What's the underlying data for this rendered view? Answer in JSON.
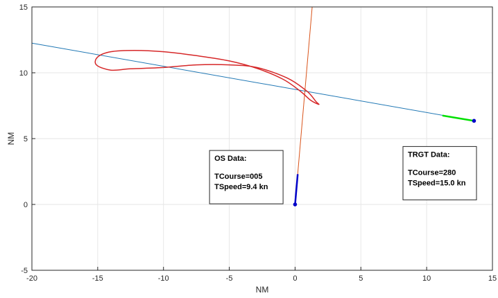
{
  "chart_data": {
    "type": "line",
    "title": "",
    "xlabel": "NM",
    "ylabel": "NM",
    "xlim": [
      -20,
      15
    ],
    "ylim": [
      -5,
      15
    ],
    "xticks": [
      -20,
      -15,
      -10,
      -5,
      0,
      5,
      10,
      15
    ],
    "yticks": [
      -5,
      0,
      5,
      10,
      15
    ],
    "grid": true,
    "series": [
      {
        "color": "#1f77b4",
        "x": [
          -20,
          13.6
        ],
        "y": [
          12.25,
          6.35
        ]
      },
      {
        "color": "#d95319",
        "x": [
          0.0,
          1.3
        ],
        "y": [
          0.0,
          15.0
        ]
      },
      {
        "color": "#d62728",
        "x": [
          0.9,
          -0.6,
          -2.9,
          -5.0,
          -7.5,
          -10.0,
          -12.5,
          -14.0,
          -15.1,
          -15.0,
          -14.0,
          -12.2,
          -10.0,
          -7.5,
          -5.0,
          -2.8,
          -0.9,
          0.4,
          1.2,
          1.8,
          1.6,
          0.9
        ],
        "y": [
          8.6,
          9.6,
          10.4,
          10.6,
          10.6,
          10.4,
          10.3,
          10.2,
          10.6,
          11.2,
          11.6,
          11.7,
          11.6,
          11.3,
          10.9,
          10.3,
          9.5,
          8.6,
          7.9,
          7.6,
          7.8,
          8.6
        ],
        "closed": true
      },
      {
        "color": "#0000c8",
        "x": [
          0.0,
          0.2
        ],
        "y": [
          0.0,
          2.3
        ],
        "marker_start": true
      },
      {
        "color": "#00e000",
        "x": [
          11.2,
          13.6
        ],
        "y": [
          6.75,
          6.35
        ],
        "marker_end": true,
        "marker_color": "#0000c8"
      }
    ],
    "annotations": [
      {
        "anchor_x": -6.5,
        "anchor_y": 4.1,
        "title": "OS Data:",
        "lines": [
          "TCourse=005",
          "TSpeed=9.4 kn"
        ]
      },
      {
        "anchor_x": 8.2,
        "anchor_y": 4.4,
        "title": "TRGT Data:",
        "lines": [
          "TCourse=280",
          "TSpeed=15.0 kn"
        ]
      }
    ]
  }
}
